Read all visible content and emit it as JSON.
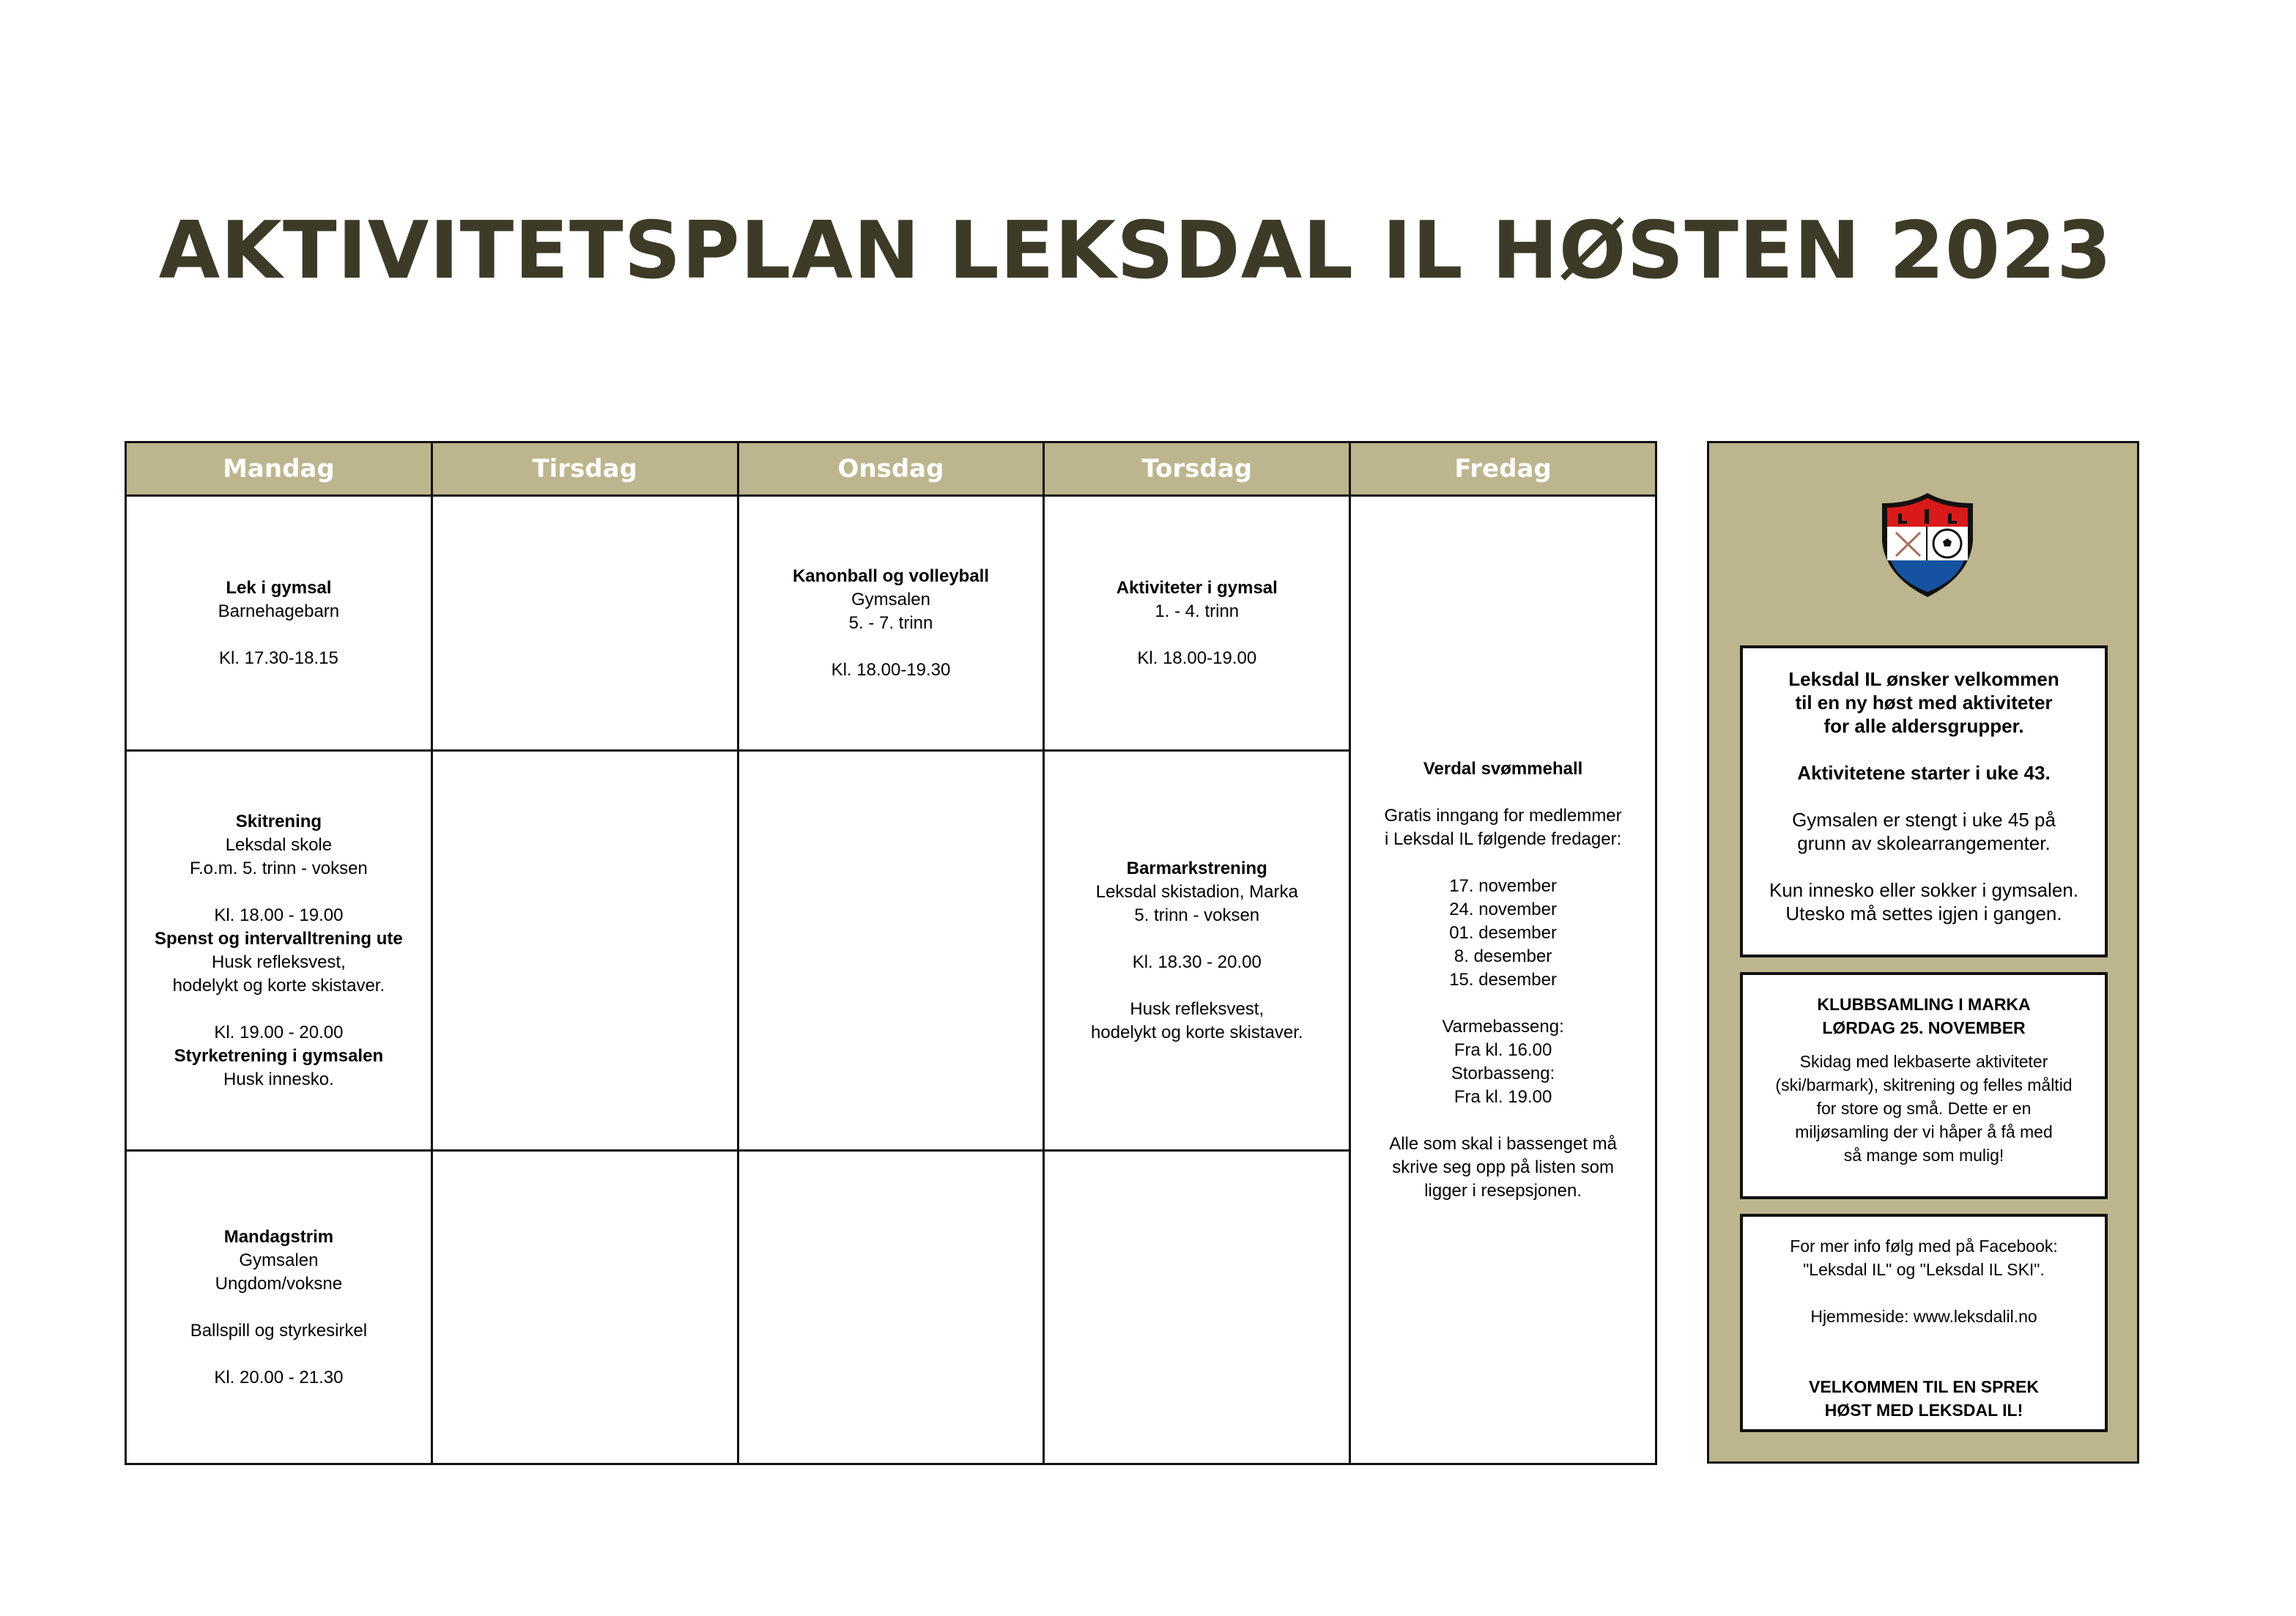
{
  "title": "AKTIVITETSPLAN LEKSDAL IL HØSTEN 2023",
  "days": [
    "Mandag",
    "Tirsdag",
    "Onsdag",
    "Torsdag",
    "Fredag"
  ],
  "cells": {
    "mon1": [
      "Lek i gymsal",
      "Barnehagebarn",
      "",
      "Kl. 17.30-18.15"
    ],
    "wed1": [
      "Kanonball og volleyball",
      "Gymsalen",
      "5. - 7. trinn",
      "",
      "Kl. 18.00-19.30"
    ],
    "thu1": [
      "Aktiviteter i gymsal",
      "1. - 4. trinn",
      "",
      "Kl. 18.00-19.00"
    ],
    "mon2": [
      "Skitrening",
      "Leksdal skole",
      "F.o.m. 5. trinn - voksen",
      "",
      "Kl. 18.00 - 19.00",
      "Spenst og intervalltrening ute",
      "Husk refleksvest,",
      "hodelykt og korte skistaver.",
      "",
      "Kl. 19.00 - 20.00",
      "Styrketrening i gymsalen",
      "Husk innesko."
    ],
    "thu2": [
      "Barmarkstrening",
      "Leksdal skistadion, Marka",
      "5. trinn - voksen",
      "",
      "Kl. 18.30 - 20.00",
      "",
      "Husk refleksvest,",
      "hodelykt og korte skistaver."
    ],
    "mon3": [
      "Mandagstrim",
      "Gymsalen",
      "Ungdom/voksne",
      "",
      "Ballspill og styrkesirkel",
      "",
      "Kl. 20.00 - 21.30"
    ],
    "fri": [
      "Verdal svømmehall",
      "",
      "Gratis inngang for medlemmer",
      "i Leksdal IL følgende fredager:",
      "",
      "17. november",
      "24. november",
      "01. desember",
      "8. desember",
      "15. desember",
      "",
      "Varmebasseng:",
      "Fra kl. 16.00",
      "Storbasseng:",
      "Fra kl. 19.00",
      "",
      "Alle som skal i bassenget må",
      "skrive seg opp på listen som",
      "ligger i resepsjonen."
    ]
  },
  "bold": {
    "mon1": [
      0
    ],
    "wed1": [
      0
    ],
    "thu1": [
      0
    ],
    "mon2": [
      0,
      5,
      10
    ],
    "thu2": [
      0
    ],
    "mon3": [
      0
    ],
    "fri": [
      0
    ]
  },
  "sidebar": {
    "logo_text": "LIL",
    "box1": [
      "Leksdal IL ønsker velkommen",
      "til en ny høst med aktiviteter",
      "for alle aldersgrupper.",
      "",
      "Aktivitetene starter i uke 43.",
      "",
      "Gymsalen er stengt i uke 45 på",
      "grunn av skolearrangementer.",
      "",
      "Kun innesko eller sokker i gymsalen.",
      "Utesko må settes igjen i gangen."
    ],
    "box2_title": [
      "KLUBBSAMLING I MARKA",
      "LØRDAG 25. NOVEMBER"
    ],
    "box2_body": [
      "Skidag med lekbaserte aktiviteter",
      "(ski/barmark), skitrening og felles måltid",
      "for store og små. Dette er en",
      "miljøsamling der vi håper å få med",
      "så mange som mulig!"
    ],
    "box3_body": [
      "For mer info følg med på Facebook:",
      "\"Leksdal IL\" og \"Leksdal IL SKI\".",
      "",
      "Hjemmeside: www.leksdalil.no",
      "",
      ""
    ],
    "box3_title": [
      "VELKOMMEN TIL EN SPREK",
      "HØST MED LEKSDAL IL!"
    ]
  },
  "colors": {
    "header": "#bdb58d",
    "title": "#3d3b27",
    "logo_red": "#d91a1a",
    "logo_blue": "#1553a0"
  }
}
